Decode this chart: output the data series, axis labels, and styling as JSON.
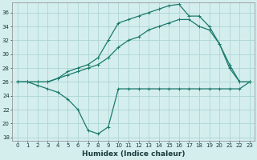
{
  "xlabel": "Humidex (Indice chaleur)",
  "bg_color": "#d4eeee",
  "grid_color": "#aed4d4",
  "line_color": "#1a7a6a",
  "xlim": [
    -0.5,
    23.5
  ],
  "ylim": [
    17.5,
    37.5
  ],
  "yticks": [
    18,
    20,
    22,
    24,
    26,
    28,
    30,
    32,
    34,
    36
  ],
  "xticks": [
    0,
    1,
    2,
    3,
    4,
    5,
    6,
    7,
    8,
    9,
    10,
    11,
    12,
    13,
    14,
    15,
    16,
    17,
    18,
    19,
    20,
    21,
    22,
    23
  ],
  "line1_x": [
    0,
    1,
    2,
    3,
    4,
    5,
    6,
    7,
    8,
    9,
    10,
    11,
    12,
    13,
    14,
    15,
    16,
    17,
    18,
    19,
    20,
    21,
    22,
    23
  ],
  "line1_y": [
    26,
    26,
    25.5,
    25,
    24.5,
    23.5,
    22,
    19,
    18.5,
    19.5,
    25,
    25,
    25,
    25,
    25,
    25,
    25,
    25,
    25,
    25,
    25,
    25,
    25,
    26
  ],
  "line2_x": [
    0,
    1,
    2,
    3,
    4,
    5,
    6,
    7,
    8,
    9,
    10,
    11,
    12,
    13,
    14,
    15,
    16,
    17,
    18,
    19,
    20,
    21,
    22,
    23
  ],
  "line2_y": [
    26,
    26,
    26,
    26,
    26.5,
    27,
    27.5,
    28,
    28.5,
    29.5,
    31,
    32,
    32.5,
    33.5,
    34,
    34.5,
    35,
    35,
    34,
    33.5,
    31.5,
    28,
    26,
    26
  ],
  "line3_x": [
    0,
    1,
    2,
    3,
    4,
    5,
    6,
    7,
    8,
    9,
    10,
    11,
    12,
    13,
    14,
    15,
    16,
    17,
    18,
    19,
    20,
    21,
    22,
    23
  ],
  "line3_y": [
    26,
    26,
    26,
    26,
    26.5,
    27.5,
    28,
    28.5,
    29.5,
    32,
    34.5,
    35,
    35.5,
    36,
    36.5,
    37,
    37.2,
    35.5,
    35.5,
    34,
    31.5,
    28.5,
    26,
    26
  ]
}
